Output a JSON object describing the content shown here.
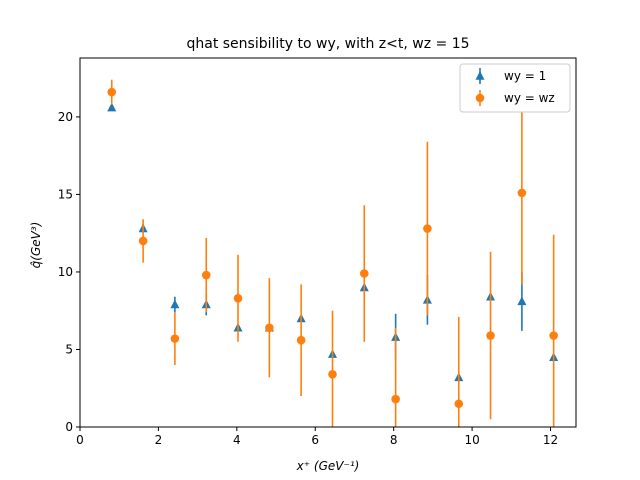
{
  "chart_data": {
    "type": "scatter",
    "title": "qhat sensibility to wy, with z<t, wz = 15",
    "xlabel": "x⁺ (GeV⁻¹)",
    "ylabel": "q̂(GeV³)",
    "xlim": [
      0,
      12.65
    ],
    "ylim": [
      0,
      23.8
    ],
    "xticks": [
      0,
      2,
      4,
      6,
      8,
      10,
      12
    ],
    "yticks": [
      0,
      5,
      10,
      15,
      20
    ],
    "grid": false,
    "legend_position": "top-right",
    "series": [
      {
        "name": "wy = 1",
        "marker": "triangle",
        "color": "#1f77b4",
        "x": [
          0.81,
          1.61,
          2.42,
          3.22,
          4.03,
          4.83,
          5.64,
          6.44,
          7.25,
          8.05,
          8.86,
          9.66,
          10.47,
          11.27,
          12.08
        ],
        "y": [
          20.6,
          12.8,
          7.9,
          7.9,
          6.4,
          6.4,
          7.0,
          4.7,
          9.0,
          5.8,
          8.2,
          3.2,
          8.4,
          8.1,
          4.5
        ],
        "err": [
          0.0,
          0.3,
          0.5,
          0.7,
          0.0,
          0.0,
          0.0,
          0.0,
          0.0,
          1.5,
          1.6,
          0.0,
          0.0,
          1.9,
          0.0
        ]
      },
      {
        "name": "wy = wz",
        "marker": "circle",
        "color": "#ff7f0e",
        "x": [
          0.81,
          1.61,
          2.42,
          3.22,
          4.03,
          4.83,
          5.64,
          6.44,
          7.25,
          8.05,
          8.86,
          9.66,
          10.47,
          11.27,
          12.08
        ],
        "y": [
          21.6,
          12.0,
          5.7,
          9.8,
          8.3,
          6.4,
          5.6,
          3.4,
          9.9,
          1.8,
          12.8,
          1.5,
          5.9,
          15.1,
          5.9
        ],
        "err": [
          0.8,
          1.4,
          1.7,
          2.4,
          2.8,
          3.2,
          3.6,
          4.1,
          4.4,
          4.6,
          5.6,
          5.6,
          5.4,
          5.9,
          6.5
        ]
      }
    ]
  }
}
